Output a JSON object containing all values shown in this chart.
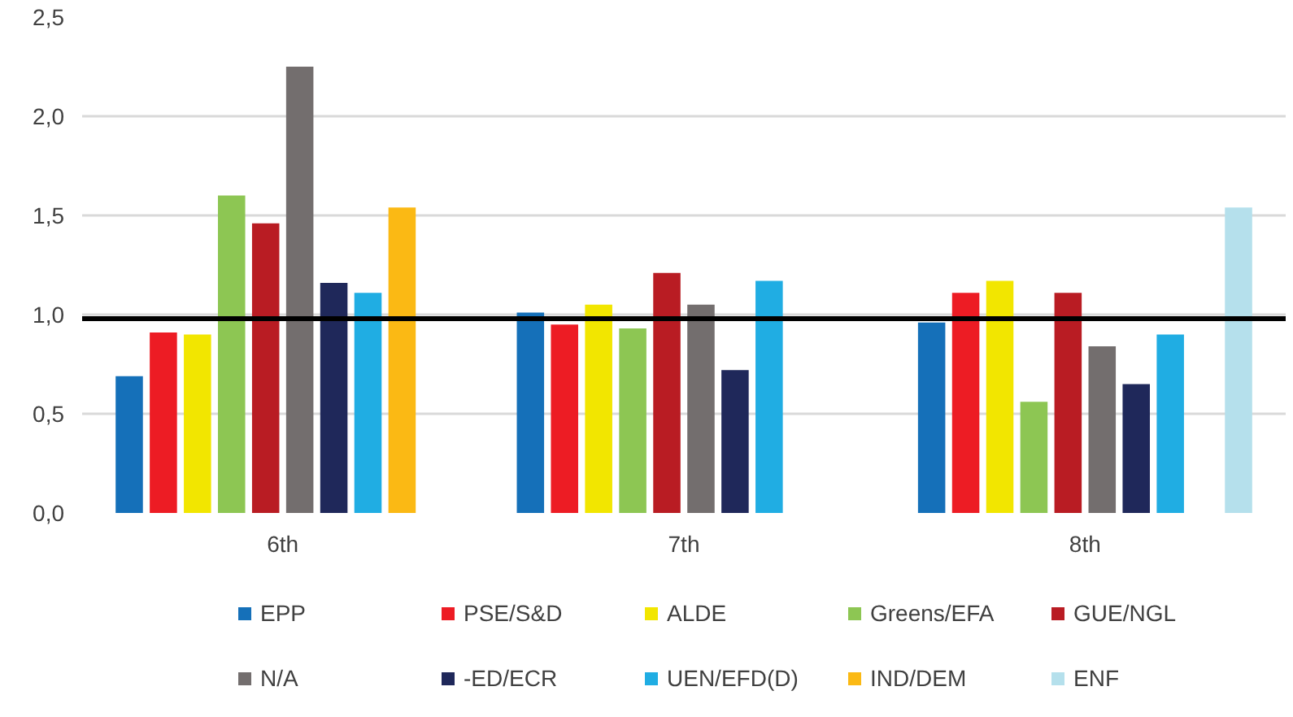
{
  "chart_data": {
    "type": "bar",
    "categories": [
      "6th",
      "7th",
      "8th"
    ],
    "series": [
      {
        "name": "EPP",
        "color": "#1570b9",
        "values": [
          0.69,
          1.01,
          0.96
        ]
      },
      {
        "name": "PSE/S&D",
        "color": "#ed1c24",
        "values": [
          0.91,
          0.95,
          1.11
        ]
      },
      {
        "name": "ALDE",
        "color": "#f2e600",
        "values": [
          0.9,
          1.05,
          1.17
        ]
      },
      {
        "name": "Greens/EFA",
        "color": "#8dc653",
        "values": [
          1.6,
          0.93,
          0.56
        ]
      },
      {
        "name": "GUE/NGL",
        "color": "#b91c23",
        "values": [
          1.46,
          1.21,
          1.11
        ]
      },
      {
        "name": "N/A",
        "color": "#736e6e",
        "values": [
          2.25,
          1.05,
          0.84
        ]
      },
      {
        "name": "-ED/ECR",
        "color": "#1f285a",
        "values": [
          1.16,
          0.72,
          0.65
        ]
      },
      {
        "name": "UEN/EFD(D)",
        "color": "#20ade3",
        "values": [
          1.11,
          1.17,
          0.9
        ]
      },
      {
        "name": "IND/DEM",
        "color": "#fbb914",
        "values": [
          1.54,
          null,
          null
        ]
      },
      {
        "name": "ENF",
        "color": "#b5e0ec",
        "values": [
          null,
          null,
          1.54
        ]
      }
    ],
    "ylim": [
      0,
      2.5
    ],
    "yticks": [
      {
        "value": 0,
        "label": "0,0"
      },
      {
        "value": 0.5,
        "label": "0,5"
      },
      {
        "value": 1.0,
        "label": "1,0"
      },
      {
        "value": 1.5,
        "label": "1,5"
      },
      {
        "value": 2.0,
        "label": "2,0"
      },
      {
        "value": 2.5,
        "label": "2,5"
      }
    ],
    "ref_lines": [
      {
        "axis": "y",
        "value": 0.98,
        "color": "#000000"
      }
    ],
    "grid": "y",
    "legend": "bottom"
  }
}
